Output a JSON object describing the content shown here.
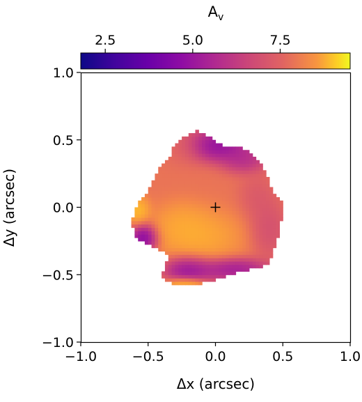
{
  "chart_data": {
    "type": "heatmap",
    "xlabel": "Δx (arcsec)",
    "ylabel": "Δy (arcsec)",
    "xlim": [
      -1.0,
      1.0
    ],
    "ylim": [
      -1.0,
      1.0
    ],
    "xticks": [
      "−1.0",
      "−0.5",
      "0.0",
      "0.5",
      "1.0"
    ],
    "xtick_values": [
      -1.0,
      -0.5,
      0.0,
      0.5,
      1.0
    ],
    "yticks": [
      "−1.0",
      "−0.5",
      "0.0",
      "0.5",
      "1.0"
    ],
    "ytick_values": [
      -1.0,
      -0.5,
      0.0,
      0.5,
      1.0
    ],
    "colorbar": {
      "label_main": "A",
      "label_sub": "v",
      "range": [
        1.8,
        9.5
      ],
      "ticks": [
        "2.5",
        "5.0",
        "7.5"
      ],
      "tick_values": [
        2.5,
        5.0,
        7.5
      ],
      "colormap": "plasma",
      "position": "top"
    },
    "marker": {
      "symbol": "+",
      "x": 0.0,
      "y": 0.0
    },
    "grid": false,
    "map_pixel_size_arcsec": 0.025,
    "outline": [
      [
        -0.3,
        0.48
      ],
      [
        -0.15,
        0.57
      ],
      [
        -0.05,
        0.53
      ],
      [
        0.05,
        0.46
      ],
      [
        0.2,
        0.44
      ],
      [
        0.3,
        0.38
      ],
      [
        0.38,
        0.25
      ],
      [
        0.42,
        0.12
      ],
      [
        0.5,
        0.05
      ],
      [
        0.48,
        -0.18
      ],
      [
        0.4,
        -0.42
      ],
      [
        0.3,
        -0.45
      ],
      [
        0.1,
        -0.5
      ],
      [
        -0.05,
        -0.55
      ],
      [
        -0.2,
        -0.58
      ],
      [
        -0.3,
        -0.58
      ],
      [
        -0.4,
        -0.52
      ],
      [
        -0.35,
        -0.35
      ],
      [
        -0.5,
        -0.28
      ],
      [
        -0.6,
        -0.22
      ],
      [
        -0.62,
        -0.1
      ],
      [
        -0.58,
        0.02
      ],
      [
        -0.48,
        0.15
      ],
      [
        -0.42,
        0.3
      ],
      [
        -0.35,
        0.35
      ]
    ],
    "av_regions": [
      {
        "x": -0.08,
        "y": 0.03,
        "sx": 0.45,
        "sy": 0.45,
        "av": 6.8
      },
      {
        "x": -0.1,
        "y": -0.2,
        "sx": 0.18,
        "sy": 0.12,
        "av": 8.9
      },
      {
        "x": -0.25,
        "y": -0.12,
        "sx": 0.12,
        "sy": 0.1,
        "av": 8.5
      },
      {
        "x": 0.0,
        "y": 0.45,
        "sx": 0.14,
        "sy": 0.07,
        "av": 2.8
      },
      {
        "x": 0.2,
        "y": 0.35,
        "sx": 0.1,
        "sy": 0.06,
        "av": 4.2
      },
      {
        "x": -0.2,
        "y": -0.45,
        "sx": 0.1,
        "sy": 0.06,
        "av": 3.2
      },
      {
        "x": 0.1,
        "y": -0.45,
        "sx": 0.15,
        "sy": 0.05,
        "av": 3.5
      },
      {
        "x": -0.22,
        "y": -0.57,
        "sx": 0.08,
        "sy": 0.03,
        "av": 9.0
      },
      {
        "x": -0.52,
        "y": -0.22,
        "sx": 0.06,
        "sy": 0.06,
        "av": 2.5
      },
      {
        "x": -0.57,
        "y": -0.02,
        "sx": 0.05,
        "sy": 0.06,
        "av": 9.0
      },
      {
        "x": 0.38,
        "y": -0.15,
        "sx": 0.08,
        "sy": 0.12,
        "av": 5.5
      },
      {
        "x": 0.3,
        "y": 0.08,
        "sx": 0.08,
        "sy": 0.1,
        "av": 5.8
      },
      {
        "x": -0.25,
        "y": 0.42,
        "sx": 0.1,
        "sy": 0.08,
        "av": 6.5
      }
    ]
  }
}
